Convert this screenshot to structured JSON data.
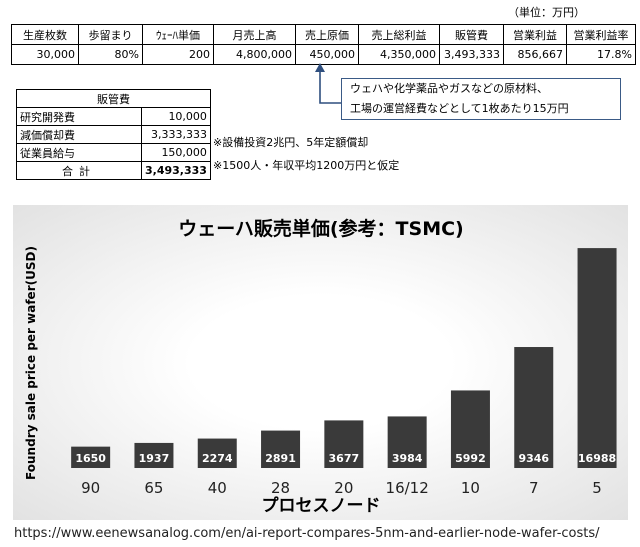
{
  "unit_label": "（単位：万円）",
  "kpi_table": {
    "headers": [
      "生産枚数",
      "歩留まり",
      "ｳｪｰﾊ単価",
      "月売上高",
      "売上原価",
      "売上総利益",
      "販管費",
      "営業利益",
      "営業利益率"
    ],
    "values": [
      "30,000",
      "80%",
      "200",
      "4,800,000",
      "450,000",
      "4,350,000",
      "3,493,333",
      "856,667",
      "17.8%"
    ]
  },
  "cost_note": {
    "line1": "ウェハや化学薬品やガスなどの原材料、",
    "line2": "工場の運営経費などとして1枚あたり15万円"
  },
  "sga_table": {
    "title": "販管費",
    "rows": [
      {
        "label": "研究開発費",
        "value": "10,000",
        "note": ""
      },
      {
        "label": "減価償却費",
        "value": "3,333,333",
        "note": "※設備投資2兆円、5年定額償却"
      },
      {
        "label": "従業員給与",
        "value": "150,000",
        "note": "※1500人・年収平均1200万円と仮定"
      }
    ],
    "total_label": "合計",
    "total_value": "3,493,333"
  },
  "chart_data": {
    "type": "bar",
    "title": "ウェーハ販売単価(参考：TSMC)",
    "xlabel": "プロセスノード",
    "ylabel": "Foundry sale price per wafer(USD)",
    "categories": [
      "90",
      "65",
      "40",
      "28",
      "20",
      "16/12",
      "10",
      "7",
      "5"
    ],
    "values": [
      1650,
      1937,
      2274,
      2891,
      3677,
      3984,
      5992,
      9346,
      16988
    ],
    "ylim": [
      0,
      18000
    ],
    "grid": false,
    "bar_color": "#3a3a3a"
  },
  "source_url": "https://www.eenewsanalog.com/en/ai-report-compares-5nm-and-earlier-node-wafer-costs/"
}
